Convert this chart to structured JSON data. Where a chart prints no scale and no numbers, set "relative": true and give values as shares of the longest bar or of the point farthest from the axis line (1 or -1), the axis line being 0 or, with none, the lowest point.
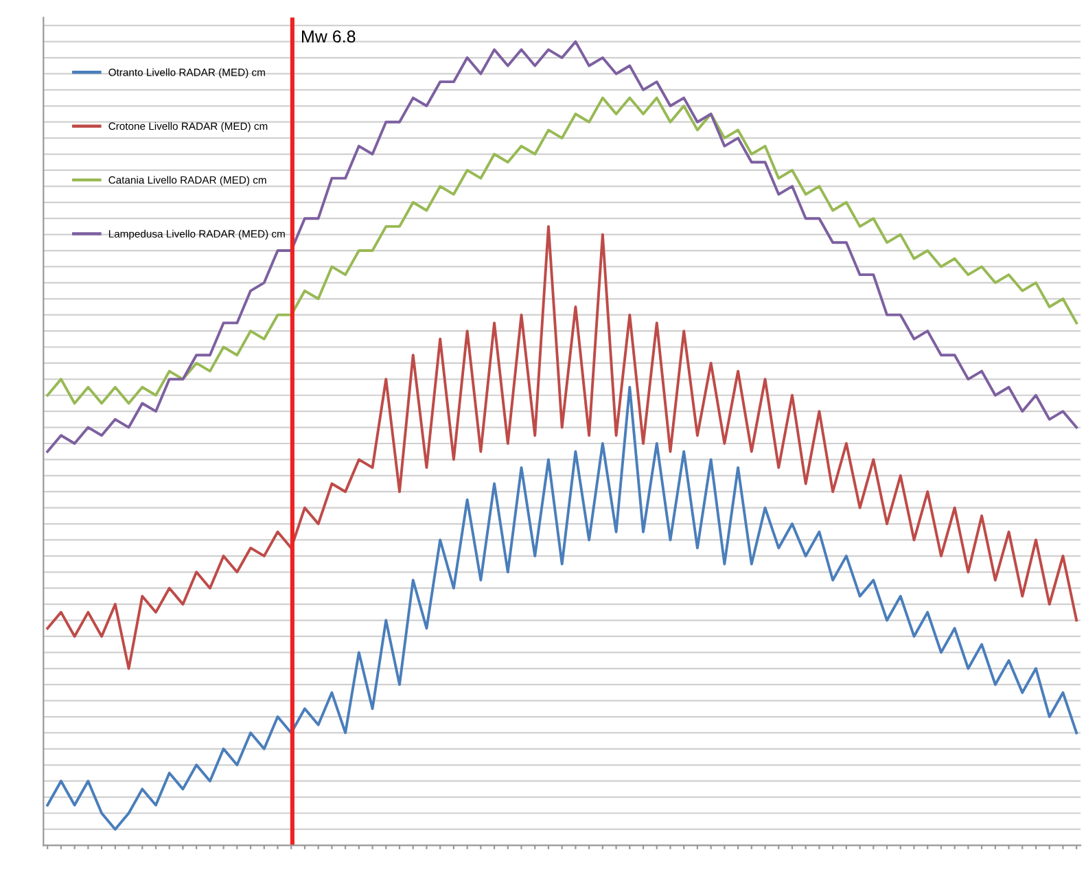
{
  "chart_data": {
    "type": "line",
    "relative": true,
    "grid": "y",
    "legend": "top left",
    "tick_labels": false,
    "categories": [
      null,
      null,
      null,
      null,
      null,
      null,
      null,
      null,
      null,
      null,
      null,
      null,
      null,
      null,
      null,
      null,
      null,
      null,
      null,
      null,
      null,
      null,
      null,
      null,
      null,
      null,
      null,
      null,
      null,
      null,
      null,
      null,
      null,
      null,
      null,
      null,
      null,
      null,
      null,
      null,
      null,
      null,
      null,
      null,
      null,
      null,
      null,
      null,
      null,
      null,
      null,
      null,
      null,
      null,
      null,
      null,
      null,
      null,
      null,
      null,
      null,
      null,
      null,
      null,
      null,
      null,
      null,
      null,
      null,
      null,
      null,
      null,
      null,
      null,
      null,
      null,
      null
    ],
    "series": [
      {
        "name": "Otranto Livello RADAR (MED) cm",
        "color": "#4a7ebb",
        "values": [
          0.05,
          0.08,
          0.05,
          0.08,
          0.04,
          0.02,
          0.04,
          0.07,
          0.05,
          0.09,
          0.07,
          0.1,
          0.08,
          0.12,
          0.1,
          0.14,
          0.12,
          0.16,
          0.14,
          0.17,
          0.15,
          0.19,
          0.14,
          0.24,
          0.17,
          0.28,
          0.2,
          0.33,
          0.27,
          0.38,
          0.32,
          0.43,
          0.33,
          0.45,
          0.34,
          0.47,
          0.36,
          0.48,
          0.35,
          0.49,
          0.38,
          0.5,
          0.39,
          0.57,
          0.39,
          0.5,
          0.38,
          0.49,
          0.37,
          0.48,
          0.35,
          0.47,
          0.35,
          0.42,
          0.37,
          0.4,
          0.36,
          0.39,
          0.33,
          0.36,
          0.31,
          0.33,
          0.28,
          0.31,
          0.26,
          0.29,
          0.24,
          0.27,
          0.22,
          0.25,
          0.2,
          0.23,
          0.19,
          0.22,
          0.16,
          0.19,
          0.14
        ]
      },
      {
        "name": "Crotone Livello RADAR (MED) cm",
        "color": "#be4b48",
        "values": [
          0.27,
          0.29,
          0.26,
          0.29,
          0.26,
          0.3,
          0.22,
          0.31,
          0.29,
          0.32,
          0.3,
          0.34,
          0.32,
          0.36,
          0.34,
          0.37,
          0.36,
          0.39,
          0.37,
          0.42,
          0.4,
          0.45,
          0.44,
          0.48,
          0.47,
          0.58,
          0.44,
          0.61,
          0.47,
          0.63,
          0.48,
          0.64,
          0.49,
          0.65,
          0.5,
          0.66,
          0.51,
          0.77,
          0.52,
          0.67,
          0.51,
          0.76,
          0.51,
          0.66,
          0.5,
          0.65,
          0.49,
          0.64,
          0.51,
          0.6,
          0.5,
          0.59,
          0.49,
          0.58,
          0.47,
          0.56,
          0.45,
          0.54,
          0.44,
          0.5,
          0.42,
          0.48,
          0.4,
          0.46,
          0.38,
          0.44,
          0.36,
          0.42,
          0.34,
          0.41,
          0.33,
          0.39,
          0.31,
          0.38,
          0.3,
          0.36,
          0.28
        ]
      },
      {
        "name": "Catania Livello RADAR (MED) cm",
        "color": "#98b954",
        "values": [
          0.56,
          0.58,
          0.55,
          0.57,
          0.55,
          0.57,
          0.55,
          0.57,
          0.56,
          0.59,
          0.58,
          0.6,
          0.59,
          0.62,
          0.61,
          0.64,
          0.63,
          0.66,
          0.66,
          0.69,
          0.68,
          0.72,
          0.71,
          0.74,
          0.74,
          0.77,
          0.77,
          0.8,
          0.79,
          0.82,
          0.81,
          0.84,
          0.83,
          0.86,
          0.85,
          0.87,
          0.86,
          0.89,
          0.88,
          0.91,
          0.9,
          0.93,
          0.91,
          0.93,
          0.91,
          0.93,
          0.9,
          0.92,
          0.89,
          0.91,
          0.88,
          0.89,
          0.86,
          0.87,
          0.83,
          0.84,
          0.81,
          0.82,
          0.79,
          0.8,
          0.77,
          0.78,
          0.75,
          0.76,
          0.73,
          0.74,
          0.72,
          0.73,
          0.71,
          0.72,
          0.7,
          0.71,
          0.69,
          0.7,
          0.67,
          0.68,
          0.65
        ]
      },
      {
        "name": "Lampedusa Livello RADAR (MED) cm",
        "color": "#7d60a0",
        "values": [
          0.49,
          0.51,
          0.5,
          0.52,
          0.51,
          0.53,
          0.52,
          0.55,
          0.54,
          0.58,
          0.58,
          0.61,
          0.61,
          0.65,
          0.65,
          0.69,
          0.7,
          0.74,
          0.74,
          0.78,
          0.78,
          0.83,
          0.83,
          0.87,
          0.86,
          0.9,
          0.9,
          0.93,
          0.92,
          0.95,
          0.95,
          0.98,
          0.96,
          0.99,
          0.97,
          0.99,
          0.97,
          0.99,
          0.98,
          1.0,
          0.97,
          0.98,
          0.96,
          0.97,
          0.94,
          0.95,
          0.92,
          0.93,
          0.9,
          0.91,
          0.87,
          0.88,
          0.85,
          0.85,
          0.81,
          0.82,
          0.78,
          0.78,
          0.75,
          0.75,
          0.71,
          0.71,
          0.66,
          0.66,
          0.63,
          0.64,
          0.61,
          0.61,
          0.58,
          0.59,
          0.56,
          0.57,
          0.54,
          0.56,
          0.53,
          0.54,
          0.52
        ]
      }
    ],
    "annotations": [
      "Mw 6.8"
    ]
  }
}
